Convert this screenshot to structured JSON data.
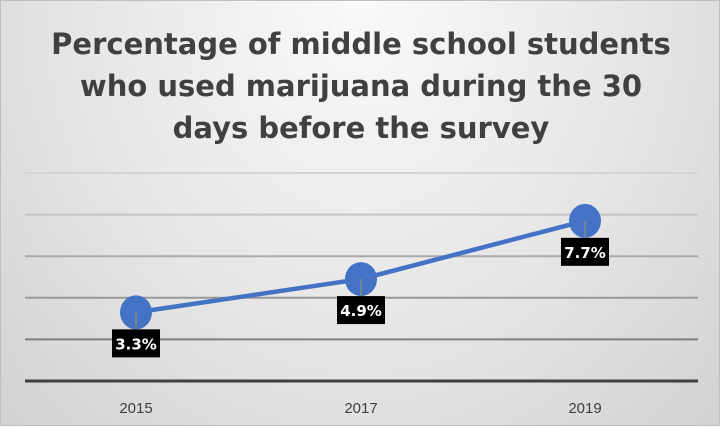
{
  "chart_data": {
    "type": "line",
    "title": "Percentage of middle school students who used marijuana during the 30 days before the survey",
    "categories": [
      "2015",
      "2017",
      "2019"
    ],
    "values": [
      3.3,
      4.9,
      7.7
    ],
    "data_labels": [
      "3.3%",
      "4.9%",
      "7.7%"
    ],
    "ylim": [
      0,
      10
    ],
    "y_gridlines": [
      2,
      4,
      6,
      8,
      10
    ],
    "y_tick_labels_shown": false,
    "grid": true,
    "legend": "none",
    "colors": {
      "line": "#4472C4",
      "label_bg": "#000000",
      "label_text": "#ffffff",
      "axis_text": "#404040"
    }
  }
}
